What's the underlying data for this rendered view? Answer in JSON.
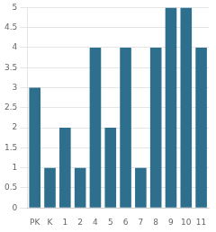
{
  "chart_data": {
    "type": "bar",
    "categories": [
      "PK",
      "K",
      "1",
      "2",
      "4",
      "5",
      "6",
      "7",
      "8",
      "9",
      "10",
      "11"
    ],
    "values": [
      3,
      1,
      2,
      1,
      4,
      2,
      4,
      1,
      4,
      5,
      5,
      4
    ],
    "color": "#2e6f8e",
    "ylim": [
      0,
      5
    ],
    "yticks": [
      0,
      0.5,
      1,
      1.5,
      2,
      2.5,
      3,
      3.5,
      4,
      4.5,
      5
    ],
    "grid": true
  }
}
